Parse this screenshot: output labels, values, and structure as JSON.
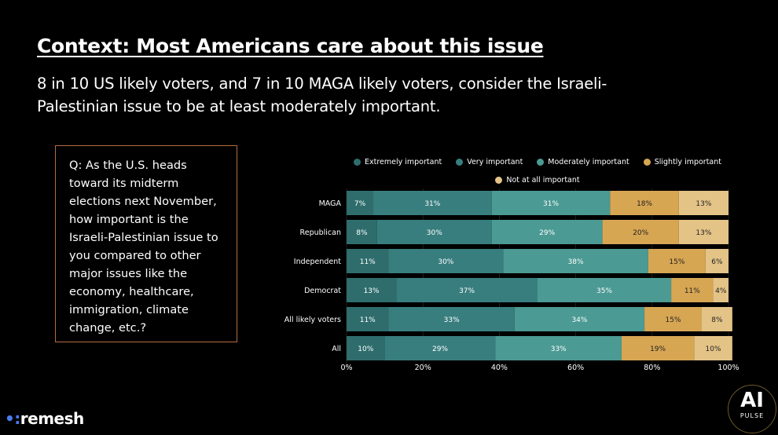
{
  "header": {
    "title": "Context: Most Americans care about this issue",
    "subtitle": "8 in 10 US likely voters, and 7 in 10 MAGA likely voters, consider the Israeli-Palestinian issue to be at least moderately important."
  },
  "question": "Q: As the U.S. heads toward its midterm elections next November, how important is the Israeli-Palestinian issue to you compared to other major issues like the economy, healthcare, immigration, climate change, etc.?",
  "chart_data": {
    "type": "bar",
    "orientation": "horizontal",
    "stacked": true,
    "categories": [
      "MAGA",
      "Republican",
      "Independent",
      "Democrat",
      "All likely voters",
      "All"
    ],
    "series": [
      {
        "name": "Extremely important",
        "color": "#2f6d6d",
        "values": [
          7,
          8,
          11,
          13,
          11,
          10
        ]
      },
      {
        "name": "Very important",
        "color": "#397e7f",
        "values": [
          31,
          30,
          30,
          37,
          33,
          29
        ]
      },
      {
        "name": "Moderately important",
        "color": "#4b9a93",
        "values": [
          31,
          29,
          38,
          35,
          34,
          33
        ]
      },
      {
        "name": "Slightly important",
        "color": "#d7a653",
        "values": [
          18,
          20,
          15,
          11,
          15,
          19
        ]
      },
      {
        "name": "Not at all important",
        "color": "#e4c387",
        "values": [
          13,
          13,
          6,
          4,
          8,
          10
        ]
      }
    ],
    "xlim": [
      0,
      100
    ],
    "xticks": [
      "0%",
      "20%",
      "40%",
      "60%",
      "80%",
      "100%"
    ],
    "legend": "top"
  },
  "footer": {
    "logo": "remesh",
    "badge": "AI",
    "badge_sub": "PULSE"
  }
}
